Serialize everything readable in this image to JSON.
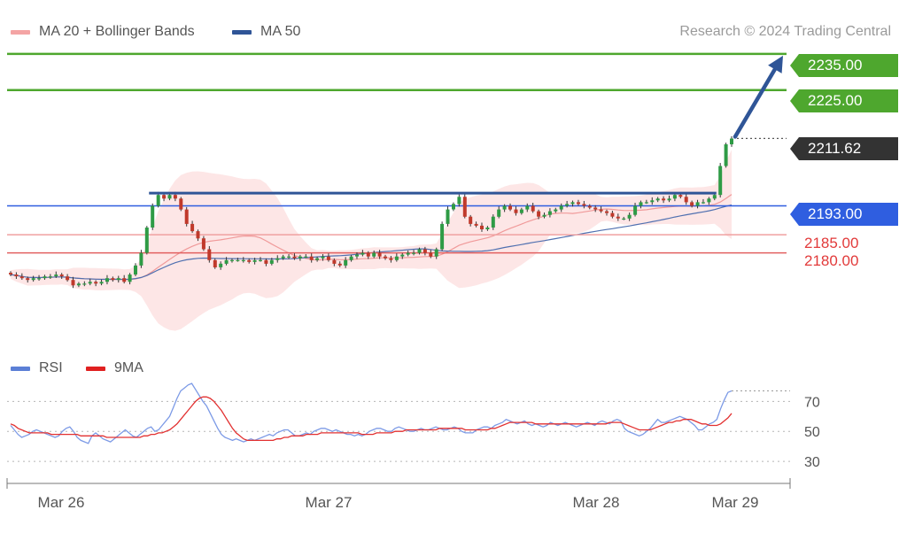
{
  "legend_price": [
    {
      "name": "MA 20 + Bollinger Bands",
      "color": "#f4a4a4"
    },
    {
      "name": "MA 50",
      "color": "#2f5597"
    }
  ],
  "legend_rsi": [
    {
      "name": "RSI",
      "color": "#5b7fd6"
    },
    {
      "name": "9MA",
      "color": "#e02020"
    }
  ],
  "copyright": "Research © 2024 Trading Central",
  "colors": {
    "up": "#2e9b45",
    "down": "#c0392b",
    "resistance": "#4ea72e",
    "support": "#e23a3a",
    "pivot": "#2f5ee0",
    "current": "#333333",
    "trendline": "#2f5597",
    "band_fill": "#fde3e3"
  },
  "price_tags": {
    "r2": "2235.00",
    "r1": "2225.00",
    "current": "2211.62",
    "pivot": "2193.00",
    "s1": "2185.00",
    "s2": "2180.00"
  },
  "chart_data": [
    {
      "type": "candlestick",
      "title": "",
      "x_ticks": [
        "Mar 26",
        "Mar 27",
        "Mar 28",
        "Mar 29"
      ],
      "ylim": [
        2152,
        2245
      ],
      "levels": {
        "resistance": [
          2235.0,
          2225.0
        ],
        "pivot": 2193.0,
        "support": [
          2185.0,
          2180.0
        ],
        "last_price": 2211.62
      },
      "projection_arrow": {
        "from": 2211.62,
        "to": 2235.0
      },
      "ohlc_start": 2174.5,
      "closes": [
        2174.0,
        2173.5,
        2173.0,
        2172.5,
        2173.0,
        2173.0,
        2173.5,
        2173.5,
        2174.0,
        2173.5,
        2172.5,
        2171.0,
        2171.5,
        2171.5,
        2172.0,
        2171.5,
        2172.0,
        2173.0,
        2172.5,
        2173.0,
        2172.0,
        2174.0,
        2176.5,
        2180.0,
        2187.0,
        2193.0,
        2196.0,
        2195.0,
        2196.0,
        2195.0,
        2192.0,
        2188.0,
        2186.0,
        2184.0,
        2181.0,
        2178.0,
        2176.0,
        2177.0,
        2178.0,
        2178.0,
        2178.0,
        2178.0,
        2177.5,
        2178.0,
        2178.0,
        2177.0,
        2178.0,
        2178.5,
        2179.0,
        2179.0,
        2178.5,
        2179.0,
        2179.0,
        2178.0,
        2178.5,
        2179.0,
        2178.0,
        2177.0,
        2176.5,
        2178.0,
        2179.0,
        2179.5,
        2180.0,
        2179.0,
        2180.0,
        2179.0,
        2178.5,
        2178.0,
        2179.0,
        2179.5,
        2180.0,
        2180.0,
        2181.0,
        2180.0,
        2179.0,
        2181.0,
        2188.0,
        2192.0,
        2193.5,
        2195.5,
        2190.0,
        2188.0,
        2187.5,
        2186.5,
        2187.0,
        2190.0,
        2192.0,
        2193.0,
        2192.0,
        2191.0,
        2192.0,
        2193.0,
        2191.5,
        2190.0,
        2190.5,
        2191.5,
        2192.0,
        2193.0,
        2193.5,
        2194.0,
        2193.5,
        2193.0,
        2192.5,
        2192.0,
        2191.5,
        2191.0,
        2190.0,
        2189.5,
        2189.5,
        2190.5,
        2193.0,
        2194.0,
        2194.0,
        2194.5,
        2195.0,
        2194.5,
        2195.0,
        2196.0,
        2195.5,
        2194.0,
        2193.0,
        2194.0,
        2194.0,
        2195.0,
        2196.0,
        2204.0,
        2210.0,
        2211.6
      ]
    },
    {
      "type": "line",
      "title": "",
      "ylim": [
        20,
        85
      ],
      "y_ticks": [
        70,
        50,
        30
      ],
      "rsi": [
        54,
        51,
        48,
        46,
        47,
        48,
        50,
        51,
        50,
        49,
        48,
        47,
        46,
        47,
        50,
        52,
        53,
        50,
        46,
        44,
        43,
        42,
        47,
        49,
        47,
        45,
        44,
        43,
        45,
        47,
        49,
        51,
        49,
        47,
        46,
        48,
        50,
        52,
        53,
        50,
        51,
        54,
        57,
        60,
        66,
        72,
        77,
        79,
        81,
        82,
        78,
        74,
        70,
        67,
        62,
        57,
        52,
        48,
        46,
        45,
        44,
        45,
        44,
        43,
        44,
        45,
        44,
        45,
        46,
        47,
        48,
        47,
        49,
        50,
        51,
        51,
        49,
        47,
        47,
        48,
        49,
        48,
        50,
        51,
        52,
        52,
        51,
        50,
        51,
        50,
        49,
        48,
        48,
        47,
        48,
        47,
        48,
        50,
        51,
        52,
        52,
        51,
        50,
        50,
        52,
        53,
        52,
        51,
        50,
        50,
        51,
        52,
        51,
        51,
        52,
        53,
        52,
        51,
        51,
        52,
        53,
        52,
        50,
        49,
        49,
        49,
        51,
        52,
        53,
        53,
        52,
        54,
        55,
        56,
        58,
        57,
        56,
        55,
        56,
        57,
        55,
        54,
        55,
        54,
        53,
        54,
        56,
        55,
        54,
        55,
        56,
        55,
        54,
        53,
        54,
        55,
        56,
        55,
        54,
        56,
        57,
        56,
        55,
        57,
        58,
        57,
        52,
        50,
        49,
        48,
        47,
        48,
        50,
        52,
        55,
        58,
        56,
        56,
        57,
        58,
        59,
        60,
        59,
        58,
        56,
        54,
        51,
        51,
        53,
        55,
        56,
        58,
        65,
        71,
        76,
        77
      ],
      "ma9": [
        55,
        54,
        52,
        51,
        50,
        49,
        49,
        49,
        49,
        49,
        49,
        48,
        48,
        48,
        48,
        48,
        48,
        48,
        48,
        47,
        47,
        47,
        47,
        47,
        47,
        47,
        46,
        46,
        46,
        46,
        46,
        46,
        46,
        46,
        46,
        46,
        47,
        47,
        48,
        48,
        49,
        49,
        50,
        51,
        53,
        55,
        58,
        61,
        64,
        67,
        70,
        72,
        73,
        73,
        72,
        70,
        67,
        64,
        60,
        56,
        52,
        49,
        47,
        45,
        44,
        44,
        44,
        44,
        44,
        44,
        44,
        44,
        45,
        45,
        46,
        46,
        47,
        47,
        47,
        47,
        48,
        48,
        48,
        48,
        49,
        49,
        49,
        49,
        49,
        49,
        49,
        49,
        49,
        49,
        49,
        48,
        48,
        48,
        48,
        49,
        49,
        49,
        49,
        49,
        50,
        50,
        50,
        51,
        51,
        51,
        51,
        51,
        51,
        51,
        51,
        51,
        52,
        52,
        52,
        52,
        52,
        52,
        52,
        51,
        51,
        51,
        51,
        51,
        51,
        51,
        52,
        52,
        53,
        54,
        55,
        56,
        56,
        56,
        56,
        56,
        56,
        56,
        55,
        55,
        55,
        55,
        55,
        55,
        55,
        55,
        55,
        55,
        55,
        55,
        55,
        55,
        55,
        55,
        55,
        55,
        55,
        55,
        56,
        56,
        56,
        56,
        55,
        54,
        53,
        52,
        51,
        51,
        51,
        51,
        52,
        53,
        54,
        55,
        56,
        56,
        57,
        57,
        58,
        58,
        58,
        57,
        56,
        55,
        55,
        54,
        54,
        54,
        55,
        57,
        59,
        62
      ]
    }
  ]
}
